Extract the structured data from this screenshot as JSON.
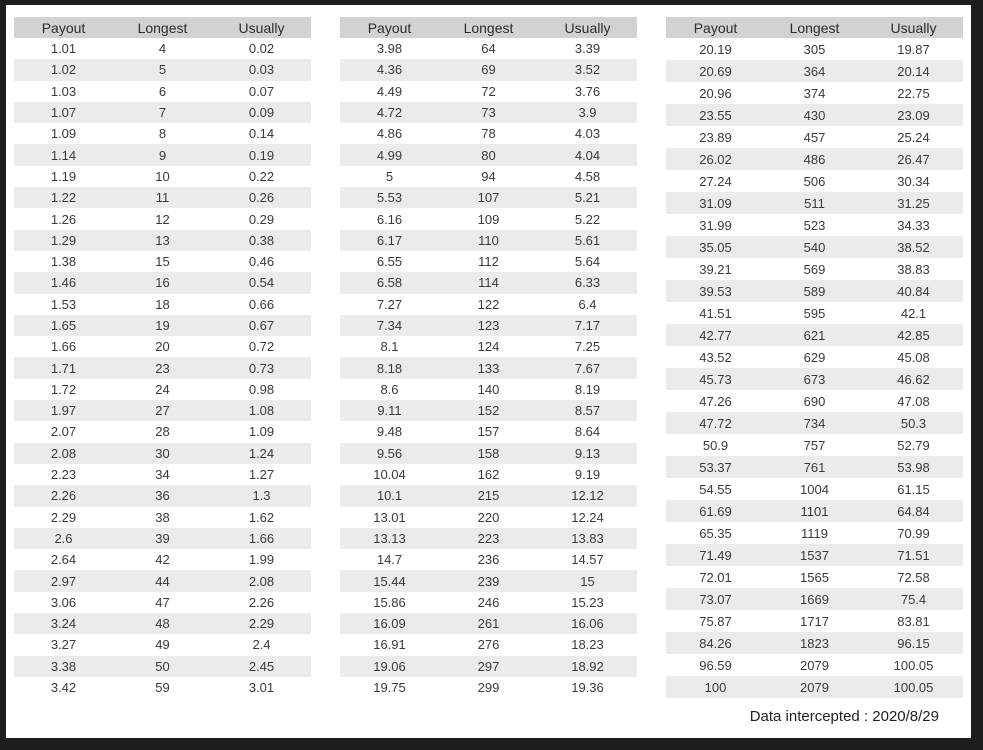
{
  "page": {
    "footer_label": "Data intercepted : 2020/8/29",
    "frame_color": "#1d1d1d",
    "header_bg": "#d2d2d2",
    "alt_row_bg": "#ebebeb"
  },
  "columns": [
    "Payout",
    "Longest",
    "Usually"
  ],
  "tables": [
    {
      "rows": [
        [
          "1.01",
          "4",
          "0.02"
        ],
        [
          "1.02",
          "5",
          "0.03"
        ],
        [
          "1.03",
          "6",
          "0.07"
        ],
        [
          "1.07",
          "7",
          "0.09"
        ],
        [
          "1.09",
          "8",
          "0.14"
        ],
        [
          "1.14",
          "9",
          "0.19"
        ],
        [
          "1.19",
          "10",
          "0.22"
        ],
        [
          "1.22",
          "11",
          "0.26"
        ],
        [
          "1.26",
          "12",
          "0.29"
        ],
        [
          "1.29",
          "13",
          "0.38"
        ],
        [
          "1.38",
          "15",
          "0.46"
        ],
        [
          "1.46",
          "16",
          "0.54"
        ],
        [
          "1.53",
          "18",
          "0.66"
        ],
        [
          "1.65",
          "19",
          "0.67"
        ],
        [
          "1.66",
          "20",
          "0.72"
        ],
        [
          "1.71",
          "23",
          "0.73"
        ],
        [
          "1.72",
          "24",
          "0.98"
        ],
        [
          "1.97",
          "27",
          "1.08"
        ],
        [
          "2.07",
          "28",
          "1.09"
        ],
        [
          "2.08",
          "30",
          "1.24"
        ],
        [
          "2.23",
          "34",
          "1.27"
        ],
        [
          "2.26",
          "36",
          "1.3"
        ],
        [
          "2.29",
          "38",
          "1.62"
        ],
        [
          "2.6",
          "39",
          "1.66"
        ],
        [
          "2.64",
          "42",
          "1.99"
        ],
        [
          "2.97",
          "44",
          "2.08"
        ],
        [
          "3.06",
          "47",
          "2.26"
        ],
        [
          "3.24",
          "48",
          "2.29"
        ],
        [
          "3.27",
          "49",
          "2.4"
        ],
        [
          "3.38",
          "50",
          "2.45"
        ],
        [
          "3.42",
          "59",
          "3.01"
        ]
      ]
    },
    {
      "rows": [
        [
          "3.98",
          "64",
          "3.39"
        ],
        [
          "4.36",
          "69",
          "3.52"
        ],
        [
          "4.49",
          "72",
          "3.76"
        ],
        [
          "4.72",
          "73",
          "3.9"
        ],
        [
          "4.86",
          "78",
          "4.03"
        ],
        [
          "4.99",
          "80",
          "4.04"
        ],
        [
          "5",
          "94",
          "4.58"
        ],
        [
          "5.53",
          "107",
          "5.21"
        ],
        [
          "6.16",
          "109",
          "5.22"
        ],
        [
          "6.17",
          "110",
          "5.61"
        ],
        [
          "6.55",
          "112",
          "5.64"
        ],
        [
          "6.58",
          "114",
          "6.33"
        ],
        [
          "7.27",
          "122",
          "6.4"
        ],
        [
          "7.34",
          "123",
          "7.17"
        ],
        [
          "8.1",
          "124",
          "7.25"
        ],
        [
          "8.18",
          "133",
          "7.67"
        ],
        [
          "8.6",
          "140",
          "8.19"
        ],
        [
          "9.11",
          "152",
          "8.57"
        ],
        [
          "9.48",
          "157",
          "8.64"
        ],
        [
          "9.56",
          "158",
          "9.13"
        ],
        [
          "10.04",
          "162",
          "9.19"
        ],
        [
          "10.1",
          "215",
          "12.12"
        ],
        [
          "13.01",
          "220",
          "12.24"
        ],
        [
          "13.13",
          "223",
          "13.83"
        ],
        [
          "14.7",
          "236",
          "14.57"
        ],
        [
          "15.44",
          "239",
          "15"
        ],
        [
          "15.86",
          "246",
          "15.23"
        ],
        [
          "16.09",
          "261",
          "16.06"
        ],
        [
          "16.91",
          "276",
          "18.23"
        ],
        [
          "19.06",
          "297",
          "18.92"
        ],
        [
          "19.75",
          "299",
          "19.36"
        ]
      ]
    },
    {
      "rows": [
        [
          "20.19",
          "305",
          "19.87"
        ],
        [
          "20.69",
          "364",
          "20.14"
        ],
        [
          "20.96",
          "374",
          "22.75"
        ],
        [
          "23.55",
          "430",
          "23.09"
        ],
        [
          "23.89",
          "457",
          "25.24"
        ],
        [
          "26.02",
          "486",
          "26.47"
        ],
        [
          "27.24",
          "506",
          "30.34"
        ],
        [
          "31.09",
          "511",
          "31.25"
        ],
        [
          "31.99",
          "523",
          "34.33"
        ],
        [
          "35.05",
          "540",
          "38.52"
        ],
        [
          "39.21",
          "569",
          "38.83"
        ],
        [
          "39.53",
          "589",
          "40.84"
        ],
        [
          "41.51",
          "595",
          "42.1"
        ],
        [
          "42.77",
          "621",
          "42.85"
        ],
        [
          "43.52",
          "629",
          "45.08"
        ],
        [
          "45.73",
          "673",
          "46.62"
        ],
        [
          "47.26",
          "690",
          "47.08"
        ],
        [
          "47.72",
          "734",
          "50.3"
        ],
        [
          "50.9",
          "757",
          "52.79"
        ],
        [
          "53.37",
          "761",
          "53.98"
        ],
        [
          "54.55",
          "1004",
          "61.15"
        ],
        [
          "61.69",
          "1101",
          "64.84"
        ],
        [
          "65.35",
          "1119",
          "70.99"
        ],
        [
          "71.49",
          "1537",
          "71.51"
        ],
        [
          "72.01",
          "1565",
          "72.58"
        ],
        [
          "73.07",
          "1669",
          "75.4"
        ],
        [
          "75.87",
          "1717",
          "83.81"
        ],
        [
          "84.26",
          "1823",
          "96.15"
        ],
        [
          "96.59",
          "2079",
          "100.05"
        ],
        [
          "100",
          "2079",
          "100.05"
        ]
      ]
    }
  ]
}
